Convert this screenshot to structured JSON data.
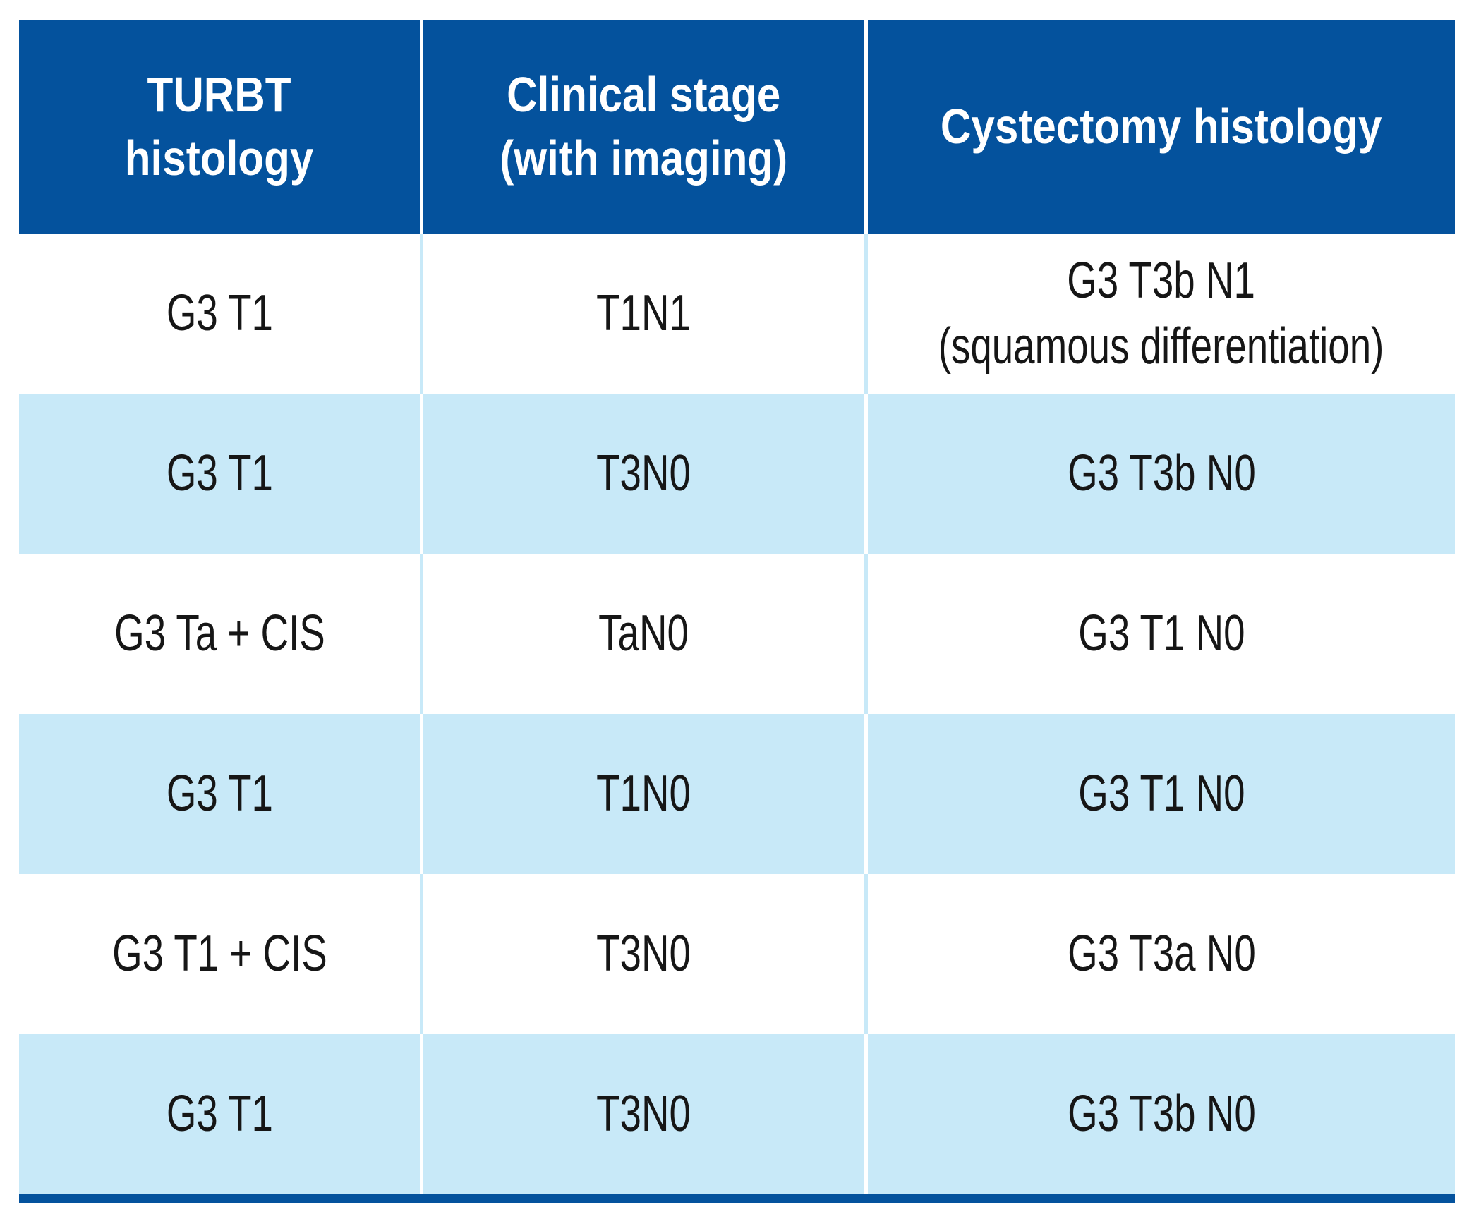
{
  "table": {
    "columns": [
      {
        "label": "TURBT\nhistology"
      },
      {
        "label": "Clinical stage\n(with imaging)"
      },
      {
        "label": "Cystectomy histology"
      }
    ],
    "rows": [
      {
        "cells": [
          "G3 T1",
          "T1N1",
          "G3 T3b N1\n(squamous differentiation)"
        ]
      },
      {
        "cells": [
          "G3 T1",
          "T3N0",
          "G3 T3b N0"
        ]
      },
      {
        "cells": [
          "G3 Ta + CIS",
          "TaN0",
          "G3 T1 N0"
        ]
      },
      {
        "cells": [
          "G3 T1",
          "T1N0",
          "G3 T1 N0"
        ]
      },
      {
        "cells": [
          "G3 T1 + CIS",
          "T3N0",
          "G3 T3a N0"
        ]
      },
      {
        "cells": [
          "G3 T1",
          "T3N0",
          "G3 T3b N0"
        ]
      }
    ]
  },
  "colors": {
    "header_bg": "#04529d",
    "header_text": "#ffffff",
    "stripe_bg": "#c8e9f8",
    "row_bg": "#ffffff",
    "body_text": "#161616",
    "bottom_bar": "#04529d"
  }
}
